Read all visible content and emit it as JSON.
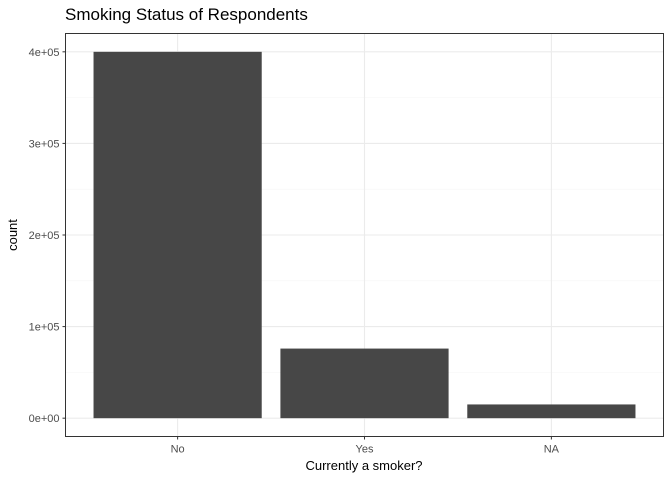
{
  "chart_data": {
    "type": "bar",
    "title": "Smoking Status of Respondents",
    "xlabel": "Currently a smoker?",
    "ylabel": "count",
    "categories": [
      "No",
      "Yes",
      "NA"
    ],
    "values": [
      400000,
      76000,
      15000
    ],
    "ylim": [
      -20000,
      420000
    ],
    "yticks": [
      0,
      100000,
      200000,
      300000,
      400000
    ],
    "ytick_labels": [
      "0e+00",
      "1e+05",
      "2e+05",
      "3e+05",
      "4e+05"
    ],
    "grid": true,
    "bar_color": "#474747",
    "panel_border_color": "#333333",
    "grid_major_color": "#ebebeb",
    "grid_minor_color": "#f5f5f5"
  }
}
